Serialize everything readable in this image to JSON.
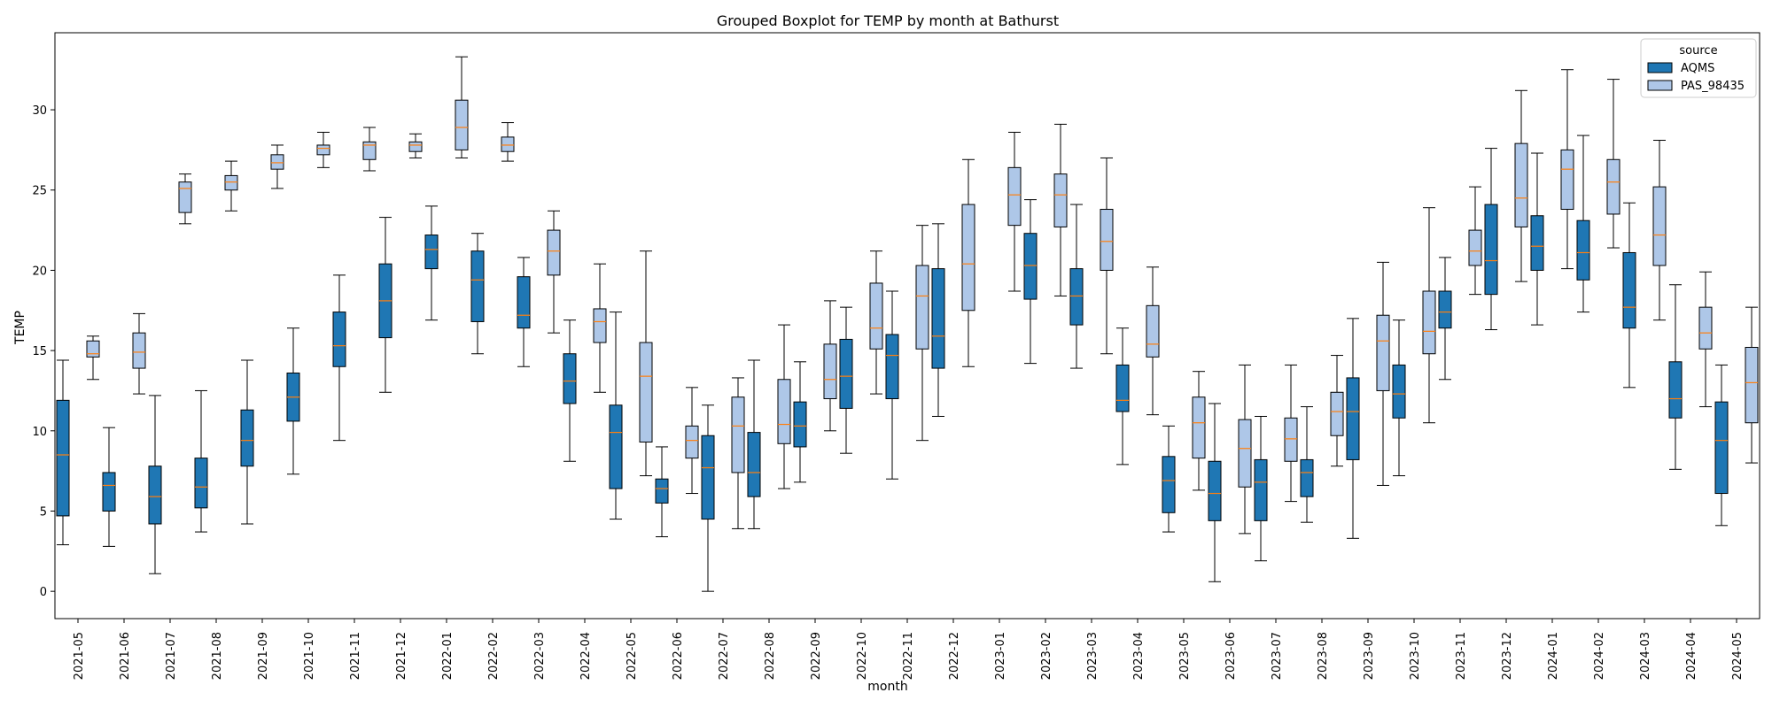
{
  "chart_data": {
    "type": "boxplot",
    "title": "Grouped Boxplot for TEMP by month at Bathurst",
    "xlabel": "month",
    "ylabel": "TEMP",
    "ylim": [
      -1.7,
      34.8
    ],
    "yticks": [
      0,
      5,
      10,
      15,
      20,
      25,
      30
    ],
    "legend": {
      "title": "source",
      "position": "top-right"
    },
    "series": [
      {
        "name": "AQMS",
        "color": "#1f77b4"
      },
      {
        "name": "PAS_98435",
        "color": "#aec7e8"
      }
    ],
    "median_color": "#ff7f0e",
    "categories": [
      "2021-05",
      "2021-06",
      "2021-07",
      "2021-08",
      "2021-09",
      "2021-10",
      "2021-11",
      "2021-12",
      "2022-01",
      "2022-02",
      "2022-03",
      "2022-04",
      "2022-05",
      "2022-06",
      "2022-07",
      "2022-08",
      "2022-09",
      "2022-10",
      "2022-11",
      "2022-12",
      "2023-01",
      "2023-02",
      "2023-03",
      "2023-04",
      "2023-05",
      "2023-06",
      "2023-07",
      "2023-08",
      "2023-09",
      "2023-10",
      "2023-11",
      "2023-12",
      "2024-01",
      "2024-02",
      "2024-03",
      "2024-04",
      "2024-05"
    ],
    "boxes": {
      "AQMS": [
        {
          "min": 2.9,
          "q1": 4.7,
          "median": 8.5,
          "q3": 11.9,
          "max": 14.4
        },
        {
          "min": 2.8,
          "q1": 5.0,
          "median": 6.6,
          "q3": 7.4,
          "max": 10.2
        },
        {
          "min": 1.1,
          "q1": 4.2,
          "median": 5.9,
          "q3": 7.8,
          "max": 12.2
        },
        {
          "min": 3.7,
          "q1": 5.2,
          "median": 6.5,
          "q3": 8.3,
          "max": 12.5
        },
        {
          "min": 4.2,
          "q1": 7.8,
          "median": 9.4,
          "q3": 11.3,
          "max": 14.4
        },
        {
          "min": 7.3,
          "q1": 10.6,
          "median": 12.1,
          "q3": 13.6,
          "max": 16.4
        },
        {
          "min": 9.4,
          "q1": 14.0,
          "median": 15.3,
          "q3": 17.4,
          "max": 19.7
        },
        {
          "min": 12.4,
          "q1": 15.8,
          "median": 18.1,
          "q3": 20.4,
          "max": 23.3
        },
        {
          "min": 16.9,
          "q1": 20.1,
          "median": 21.3,
          "q3": 22.2,
          "max": 24.0
        },
        {
          "min": 14.8,
          "q1": 16.8,
          "median": 19.4,
          "q3": 21.2,
          "max": 22.3
        },
        {
          "min": 14.0,
          "q1": 16.4,
          "median": 17.2,
          "q3": 19.6,
          "max": 20.8
        },
        {
          "min": 8.1,
          "q1": 11.7,
          "median": 13.1,
          "q3": 14.8,
          "max": 16.9
        },
        {
          "min": 4.5,
          "q1": 6.4,
          "median": 9.9,
          "q3": 11.6,
          "max": 17.4
        },
        {
          "min": 3.4,
          "q1": 5.5,
          "median": 6.4,
          "q3": 7.0,
          "max": 9.0
        },
        {
          "min": 0.0,
          "q1": 4.5,
          "median": 7.7,
          "q3": 9.7,
          "max": 11.6
        },
        {
          "min": 3.9,
          "q1": 5.9,
          "median": 7.4,
          "q3": 9.9,
          "max": 14.4
        },
        {
          "min": 6.8,
          "q1": 9.0,
          "median": 10.3,
          "q3": 11.8,
          "max": 14.3
        },
        {
          "min": 8.6,
          "q1": 11.4,
          "median": 13.4,
          "q3": 15.7,
          "max": 17.7
        },
        {
          "min": 7.0,
          "q1": 12.0,
          "median": 14.7,
          "q3": 16.0,
          "max": 18.7
        },
        {
          "min": 10.9,
          "q1": 13.9,
          "median": 15.9,
          "q3": 20.1,
          "max": 22.9
        },
        {
          "min": null,
          "q1": null,
          "median": null,
          "q3": null,
          "max": null
        },
        {
          "min": 14.2,
          "q1": 18.2,
          "median": 20.3,
          "q3": 22.3,
          "max": 24.4
        },
        {
          "min": 13.9,
          "q1": 16.6,
          "median": 18.4,
          "q3": 20.1,
          "max": 24.1
        },
        {
          "min": 7.9,
          "q1": 11.2,
          "median": 11.9,
          "q3": 14.1,
          "max": 16.4
        },
        {
          "min": 3.7,
          "q1": 4.9,
          "median": 6.9,
          "q3": 8.4,
          "max": 10.3
        },
        {
          "min": 0.6,
          "q1": 4.4,
          "median": 6.1,
          "q3": 8.1,
          "max": 11.7
        },
        {
          "min": 1.9,
          "q1": 4.4,
          "median": 6.8,
          "q3": 8.2,
          "max": 10.9
        },
        {
          "min": 4.3,
          "q1": 5.9,
          "median": 7.4,
          "q3": 8.2,
          "max": 11.5
        },
        {
          "min": 3.3,
          "q1": 8.2,
          "median": 11.2,
          "q3": 13.3,
          "max": 17.0
        },
        {
          "min": 7.2,
          "q1": 10.8,
          "median": 12.3,
          "q3": 14.1,
          "max": 16.9
        },
        {
          "min": 13.2,
          "q1": 16.4,
          "median": 17.4,
          "q3": 18.7,
          "max": 20.8
        },
        {
          "min": 16.3,
          "q1": 18.5,
          "median": 20.6,
          "q3": 24.1,
          "max": 27.6
        },
        {
          "min": 16.6,
          "q1": 20.0,
          "median": 21.5,
          "q3": 23.4,
          "max": 27.3
        },
        {
          "min": 17.4,
          "q1": 19.4,
          "median": 21.1,
          "q3": 23.1,
          "max": 28.4
        },
        {
          "min": 12.7,
          "q1": 16.4,
          "median": 17.7,
          "q3": 21.1,
          "max": 24.2
        },
        {
          "min": 7.6,
          "q1": 10.8,
          "median": 12.0,
          "q3": 14.3,
          "max": 19.1
        },
        {
          "min": 4.1,
          "q1": 6.1,
          "median": 9.4,
          "q3": 11.8,
          "max": 14.1
        }
      ],
      "PAS_98435": [
        {
          "min": 13.2,
          "q1": 14.6,
          "median": 14.8,
          "q3": 15.6,
          "max": 15.9
        },
        {
          "min": 12.3,
          "q1": 13.9,
          "median": 14.9,
          "q3": 16.1,
          "max": 17.3
        },
        {
          "min": 22.9,
          "q1": 23.6,
          "median": 25.1,
          "q3": 25.5,
          "max": 26.0
        },
        {
          "min": 23.7,
          "q1": 25.0,
          "median": 25.5,
          "q3": 25.9,
          "max": 26.8
        },
        {
          "min": 25.1,
          "q1": 26.3,
          "median": 26.7,
          "q3": 27.2,
          "max": 27.8
        },
        {
          "min": 26.4,
          "q1": 27.2,
          "median": 27.6,
          "q3": 27.8,
          "max": 28.6
        },
        {
          "min": 26.2,
          "q1": 26.9,
          "median": 27.8,
          "q3": 28.0,
          "max": 28.9
        },
        {
          "min": 27.0,
          "q1": 27.4,
          "median": 27.8,
          "q3": 28.0,
          "max": 28.5
        },
        {
          "min": 27.0,
          "q1": 27.5,
          "median": 28.9,
          "q3": 30.6,
          "max": 33.3
        },
        {
          "min": 26.8,
          "q1": 27.4,
          "median": 27.8,
          "q3": 28.3,
          "max": 29.2
        },
        {
          "min": 16.1,
          "q1": 19.7,
          "median": 21.2,
          "q3": 22.5,
          "max": 23.7
        },
        {
          "min": 12.4,
          "q1": 15.5,
          "median": 16.8,
          "q3": 17.6,
          "max": 20.4
        },
        {
          "min": 7.2,
          "q1": 9.3,
          "median": 13.4,
          "q3": 15.5,
          "max": 21.2
        },
        {
          "min": 6.1,
          "q1": 8.3,
          "median": 9.4,
          "q3": 10.3,
          "max": 12.7
        },
        {
          "min": 3.9,
          "q1": 7.4,
          "median": 10.3,
          "q3": 12.1,
          "max": 13.3
        },
        {
          "min": 6.4,
          "q1": 9.2,
          "median": 10.4,
          "q3": 13.2,
          "max": 16.6
        },
        {
          "min": 10.0,
          "q1": 12.0,
          "median": 13.2,
          "q3": 15.4,
          "max": 18.1
        },
        {
          "min": 12.3,
          "q1": 15.1,
          "median": 16.4,
          "q3": 19.2,
          "max": 21.2
        },
        {
          "min": 9.4,
          "q1": 15.1,
          "median": 18.4,
          "q3": 20.3,
          "max": 22.8
        },
        {
          "min": 14.0,
          "q1": 17.5,
          "median": 20.4,
          "q3": 24.1,
          "max": 26.9
        },
        {
          "min": 18.7,
          "q1": 22.8,
          "median": 24.7,
          "q3": 26.4,
          "max": 28.6
        },
        {
          "min": 18.4,
          "q1": 22.7,
          "median": 24.7,
          "q3": 26.0,
          "max": 29.1
        },
        {
          "min": 14.8,
          "q1": 20.0,
          "median": 21.8,
          "q3": 23.8,
          "max": 27.0
        },
        {
          "min": 11.0,
          "q1": 14.6,
          "median": 15.4,
          "q3": 17.8,
          "max": 20.2
        },
        {
          "min": 6.3,
          "q1": 8.3,
          "median": 10.5,
          "q3": 12.1,
          "max": 13.7
        },
        {
          "min": 3.6,
          "q1": 6.5,
          "median": 8.9,
          "q3": 10.7,
          "max": 14.1
        },
        {
          "min": 5.6,
          "q1": 8.1,
          "median": 9.5,
          "q3": 10.8,
          "max": 14.1
        },
        {
          "min": 7.8,
          "q1": 9.7,
          "median": 11.2,
          "q3": 12.4,
          "max": 14.7
        },
        {
          "min": 6.6,
          "q1": 12.5,
          "median": 15.6,
          "q3": 17.2,
          "max": 20.5
        },
        {
          "min": 10.5,
          "q1": 14.8,
          "median": 16.2,
          "q3": 18.7,
          "max": 23.9
        },
        {
          "min": 18.5,
          "q1": 20.3,
          "median": 21.2,
          "q3": 22.5,
          "max": 25.2
        },
        {
          "min": 19.3,
          "q1": 22.7,
          "median": 24.5,
          "q3": 27.9,
          "max": 31.2
        },
        {
          "min": 20.1,
          "q1": 23.8,
          "median": 26.3,
          "q3": 27.5,
          "max": 32.5
        },
        {
          "min": 21.4,
          "q1": 23.5,
          "median": 25.5,
          "q3": 26.9,
          "max": 31.9
        },
        {
          "min": 16.9,
          "q1": 20.3,
          "median": 22.2,
          "q3": 25.2,
          "max": 28.1
        },
        {
          "min": 11.5,
          "q1": 15.1,
          "median": 16.1,
          "q3": 17.7,
          "max": 19.9
        },
        {
          "min": 8.0,
          "q1": 10.5,
          "median": 13.0,
          "q3": 15.2,
          "max": 17.7
        }
      ]
    }
  }
}
